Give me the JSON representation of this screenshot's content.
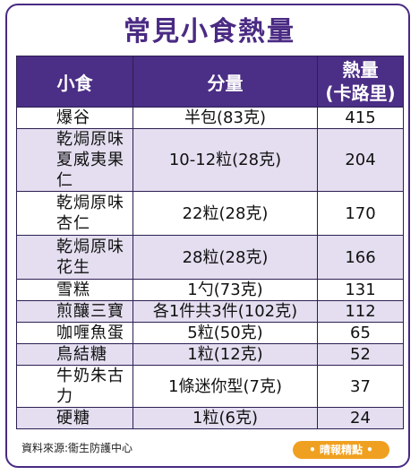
{
  "title": "常見小食熱量",
  "table": {
    "headers": {
      "snack": "小食",
      "portion": "分量",
      "calories_line1": "熱量",
      "calories_line2": "(卡路里)"
    },
    "rows": [
      {
        "snack_lines": [
          "爆谷"
        ],
        "portion": "半包(83克)",
        "calories": "415"
      },
      {
        "snack_lines": [
          "乾焗原味",
          "夏威夷果仁"
        ],
        "portion": "10-12粒(28克)",
        "calories": "204"
      },
      {
        "snack_lines": [
          "乾焗原味",
          "杏仁"
        ],
        "portion": "22粒(28克)",
        "calories": "170"
      },
      {
        "snack_lines": [
          "乾焗原味",
          "花生"
        ],
        "portion": "28粒(28克)",
        "calories": "166"
      },
      {
        "snack_lines": [
          "雪糕"
        ],
        "portion": "1勺(73克)",
        "calories": "131"
      },
      {
        "snack_lines": [
          "煎釀三寶"
        ],
        "portion": "各1件共3件(102克)",
        "calories": "112"
      },
      {
        "snack_lines": [
          "咖喱魚蛋"
        ],
        "portion": "5粒(50克)",
        "calories": "65"
      },
      {
        "snack_lines": [
          "鳥結糖"
        ],
        "portion": "1粒(12克)",
        "calories": "52"
      },
      {
        "snack_lines": [
          "牛奶朱古力"
        ],
        "portion": "1條迷你型(7克)",
        "calories": "37"
      },
      {
        "snack_lines": [
          "硬糖"
        ],
        "portion": "1粒(6克)",
        "calories": "24"
      }
    ]
  },
  "source": "資料來源:衞生防護中心",
  "badge": "• 晴報精點 •",
  "colors": {
    "header_bg": "#4b2e86",
    "stripe_bg": "#e4def0",
    "title": "#4a2a83",
    "badge_bg": "#f0a020"
  }
}
